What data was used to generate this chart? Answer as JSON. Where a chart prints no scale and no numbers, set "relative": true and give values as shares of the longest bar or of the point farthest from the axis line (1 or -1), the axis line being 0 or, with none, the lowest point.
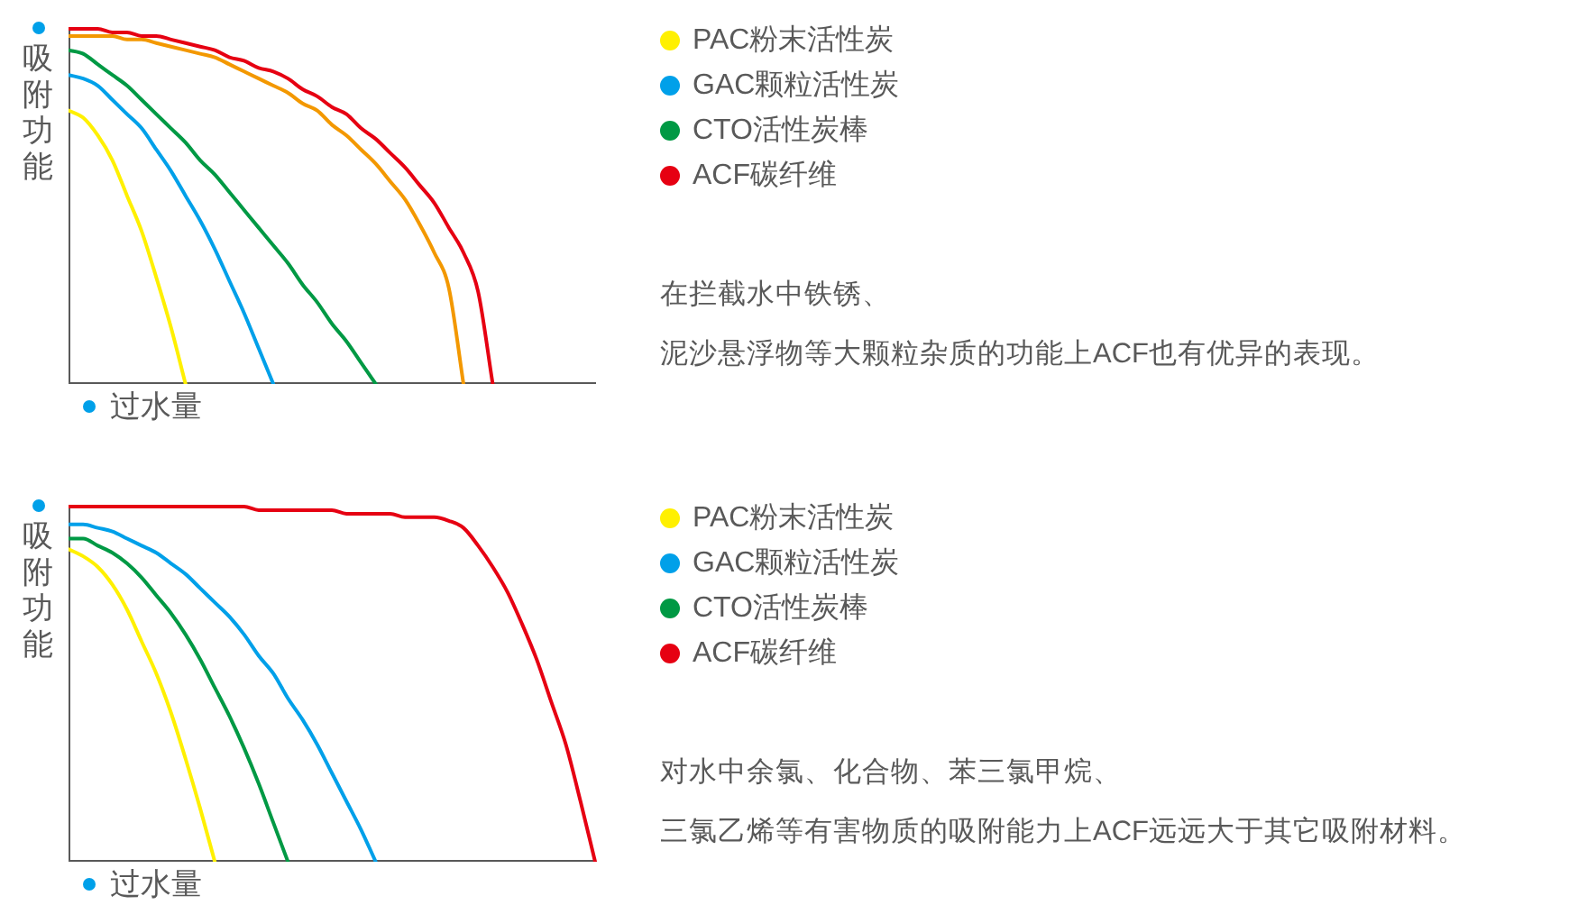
{
  "chart_data": [
    {
      "type": "line",
      "relative": true,
      "ylabel": "吸附功能",
      "xlabel": "过水量",
      "legend": "right",
      "marker": "none",
      "grid": false,
      "tick_labels": false,
      "categories": [
        null,
        null,
        null,
        null,
        null,
        null,
        null,
        null,
        null,
        null,
        null,
        null,
        null,
        null,
        null,
        null,
        null,
        null,
        null,
        null,
        null,
        null,
        null,
        null,
        null,
        null,
        null,
        null,
        null,
        null,
        null,
        null,
        null,
        null,
        null,
        null,
        null
      ],
      "series": [
        {
          "name": "PAC粉末活性炭",
          "color": "#fff000",
          "values": [
            0.77,
            0.75,
            0.7,
            0.63,
            0.53,
            0.43,
            0.3,
            0.16,
            0,
            null,
            null,
            null,
            null,
            null,
            null,
            null,
            null,
            null,
            null,
            null,
            null,
            null,
            null,
            null,
            null,
            null,
            null,
            null,
            null,
            null,
            null,
            null,
            null,
            null,
            null,
            null,
            null
          ]
        },
        {
          "name": "GAC颗粒活性炭",
          "color": "#00a0e9",
          "values": [
            0.87,
            0.86,
            0.84,
            0.8,
            0.76,
            0.72,
            0.66,
            0.6,
            0.53,
            0.46,
            0.38,
            0.29,
            0.2,
            0.1,
            0,
            null,
            null,
            null,
            null,
            null,
            null,
            null,
            null,
            null,
            null,
            null,
            null,
            null,
            null,
            null,
            null,
            null,
            null,
            null,
            null,
            null,
            null
          ]
        },
        {
          "name": "CTO活性炭棒",
          "color": "#009944",
          "values": [
            0.94,
            0.93,
            0.9,
            0.87,
            0.84,
            0.8,
            0.76,
            0.72,
            0.68,
            0.63,
            0.59,
            0.54,
            0.49,
            0.44,
            0.39,
            0.34,
            0.28,
            0.23,
            0.17,
            0.12,
            0.06,
            0,
            null,
            null,
            null,
            null,
            null,
            null,
            null,
            null,
            null,
            null,
            null,
            null,
            null,
            null,
            null
          ]
        },
        {
          "name": "ACF碳纤维",
          "color": "#e60012",
          "values": [
            1,
            1,
            1,
            0.99,
            0.99,
            0.98,
            0.98,
            0.97,
            0.96,
            0.95,
            0.94,
            0.92,
            0.91,
            0.89,
            0.88,
            0.86,
            0.83,
            0.81,
            0.78,
            0.76,
            0.72,
            0.69,
            0.65,
            0.61,
            0.56,
            0.51,
            0.44,
            0.37,
            0.26,
            0,
            null,
            null,
            null,
            null,
            null,
            null,
            null
          ]
        },
        {
          "color": "#f39800",
          "values": [
            0.98,
            0.98,
            0.98,
            0.98,
            0.97,
            0.97,
            0.96,
            0.95,
            0.94,
            0.93,
            0.92,
            0.9,
            0.88,
            0.86,
            0.84,
            0.82,
            0.79,
            0.77,
            0.73,
            0.7,
            0.66,
            0.62,
            0.57,
            0.52,
            0.45,
            0.37,
            0.27,
            0,
            null,
            null,
            null,
            null,
            null,
            null,
            null,
            null,
            null
          ]
        }
      ],
      "annotations": [
        "在拦截水中铁锈、",
        "泥沙悬浮物等大颗粒杂质的功能上ACF也有优异的表现。"
      ]
    },
    {
      "type": "line",
      "relative": true,
      "ylabel": "吸附功能",
      "xlabel": "过水量",
      "legend": "right",
      "marker": "none",
      "grid": false,
      "tick_labels": false,
      "categories": [
        null,
        null,
        null,
        null,
        null,
        null,
        null,
        null,
        null,
        null,
        null,
        null,
        null,
        null,
        null,
        null,
        null,
        null,
        null,
        null,
        null,
        null,
        null,
        null,
        null,
        null,
        null,
        null,
        null,
        null,
        null,
        null,
        null,
        null,
        null,
        null,
        null
      ],
      "series": [
        {
          "name": "PAC粉末活性炭",
          "color": "#fff000",
          "values": [
            0.88,
            0.86,
            0.83,
            0.78,
            0.71,
            0.62,
            0.53,
            0.42,
            0.29,
            0.15,
            0,
            null,
            null,
            null,
            null,
            null,
            null,
            null,
            null,
            null,
            null,
            null,
            null,
            null,
            null,
            null,
            null,
            null,
            null,
            null,
            null,
            null,
            null,
            null,
            null,
            null,
            null
          ]
        },
        {
          "name": "GAC颗粒活性炭",
          "color": "#00a0e9",
          "values": [
            0.95,
            0.95,
            0.94,
            0.93,
            0.91,
            0.89,
            0.87,
            0.84,
            0.81,
            0.77,
            0.73,
            0.69,
            0.64,
            0.58,
            0.53,
            0.46,
            0.4,
            0.33,
            0.25,
            0.17,
            0.09,
            0,
            null,
            null,
            null,
            null,
            null,
            null,
            null,
            null,
            null,
            null,
            null,
            null,
            null,
            null,
            null
          ]
        },
        {
          "name": "CTO活性炭棒",
          "color": "#009944",
          "values": [
            0.91,
            0.91,
            0.89,
            0.87,
            0.84,
            0.8,
            0.75,
            0.7,
            0.64,
            0.57,
            0.49,
            0.41,
            0.32,
            0.22,
            0.11,
            0,
            null,
            null,
            null,
            null,
            null,
            null,
            null,
            null,
            null,
            null,
            null,
            null,
            null,
            null,
            null,
            null,
            null,
            null,
            null,
            null,
            null
          ]
        },
        {
          "name": "ACF碳纤维",
          "color": "#e60012",
          "values": [
            1,
            1,
            1,
            1,
            1,
            1,
            1,
            1,
            1,
            1,
            1,
            1,
            1,
            0.99,
            0.99,
            0.99,
            0.99,
            0.99,
            0.99,
            0.98,
            0.98,
            0.98,
            0.98,
            0.97,
            0.97,
            0.97,
            0.96,
            0.94,
            0.89,
            0.83,
            0.76,
            0.67,
            0.57,
            0.45,
            0.33,
            0.17,
            0
          ]
        }
      ],
      "annotations": [
        "对水中余氯、化合物、苯三氯甲烷、",
        "三氯乙烯等有害物质的吸附能力上ACF远远大于其它吸附材料。"
      ]
    }
  ]
}
